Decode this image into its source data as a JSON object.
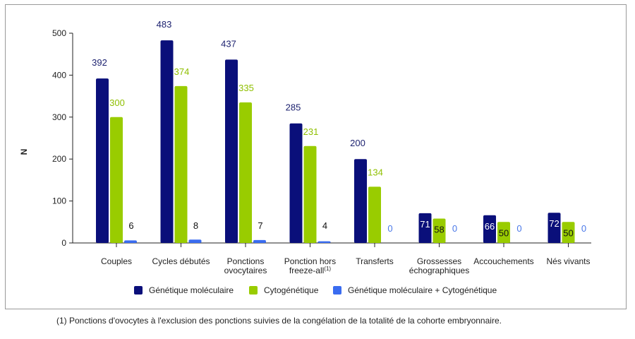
{
  "chart_data": {
    "type": "bar",
    "ylabel": "N",
    "ylim": [
      0,
      500
    ],
    "yticks": [
      0,
      100,
      200,
      300,
      400,
      500
    ],
    "grid": false,
    "legend_position": "bottom",
    "categories": [
      [
        "Couples"
      ],
      [
        "Cycles débutés"
      ],
      [
        "Ponctions",
        "ovocytaires"
      ],
      [
        "Ponction hors",
        "freeze-all"
      ],
      [
        "Transferts"
      ],
      [
        "Grossesses",
        "échographiques"
      ],
      [
        "Accouchements"
      ],
      [
        "Nés vivants"
      ]
    ],
    "category_superscripts": [
      "",
      "",
      "",
      "(1)",
      "",
      "",
      "",
      ""
    ],
    "series": [
      {
        "name": "Génétique moléculaire",
        "color": "#0a0f7a",
        "label_color": "#1a1f6e",
        "values": [
          392,
          483,
          437,
          285,
          200,
          71,
          66,
          72
        ]
      },
      {
        "name": "Cytogénétique",
        "color": "#99cc00",
        "label_color": "#8fbf00",
        "values": [
          300,
          374,
          335,
          231,
          134,
          58,
          50,
          50
        ]
      },
      {
        "name": "Génétique moléculaire + Cytogénétique",
        "color": "#3a6cf0",
        "label_color": "#4a78e8",
        "values": [
          6,
          8,
          7,
          4,
          0,
          0,
          0,
          0
        ]
      }
    ]
  },
  "footnote": "(1) Ponctions d'ovocytes à l'exclusion des ponctions suivies de la congélation de la totalité de la cohorte embryonnaire."
}
